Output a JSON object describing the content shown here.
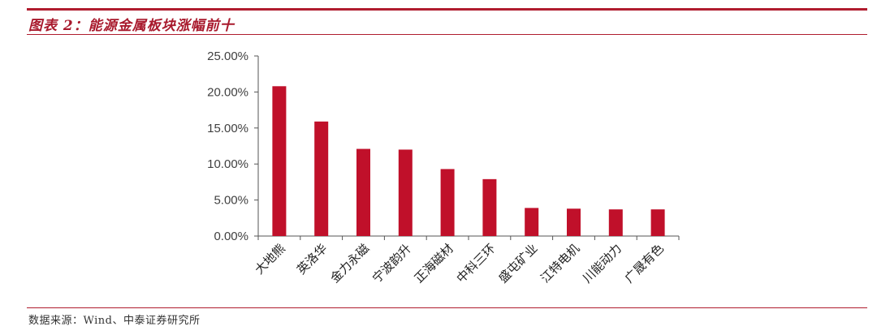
{
  "header": {
    "title": "图表 2：能源金属板块涨幅前十"
  },
  "footer": {
    "source": "数据来源：Wind、中泰证券研究所"
  },
  "colors": {
    "bar": "#c0102a",
    "accent": "#b01c2e",
    "axis": "#555555"
  },
  "chart_data": {
    "type": "bar",
    "categories": [
      "大地熊",
      "英洛华",
      "金力永磁",
      "宁波韵升",
      "正海磁材",
      "中科三环",
      "盛屯矿业",
      "江特电机",
      "川能动力",
      "广晟有色"
    ],
    "values": [
      20.8,
      15.9,
      12.1,
      12.0,
      9.3,
      7.9,
      3.9,
      3.8,
      3.7,
      3.7
    ],
    "y_ticks": [
      "0.00%",
      "5.00%",
      "10.00%",
      "15.00%",
      "20.00%",
      "25.00%"
    ],
    "ylim": [
      0,
      25
    ],
    "grid": false,
    "legend": "none",
    "xlabel": "",
    "ylabel": ""
  }
}
